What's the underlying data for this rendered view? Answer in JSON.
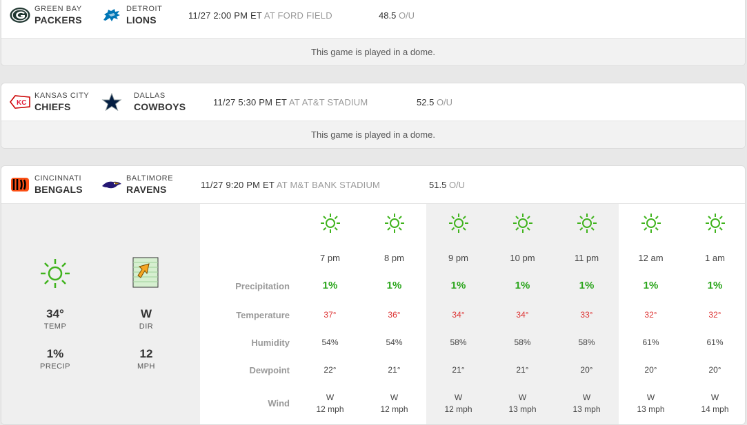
{
  "games": [
    {
      "away": {
        "city": "GREEN BAY",
        "name": "PACKERS"
      },
      "home": {
        "city": "DETROIT",
        "name": "LIONS"
      },
      "time": "11/27 2:00 PM ET",
      "venue": "AT FORD FIELD",
      "total": "48.5",
      "ou_label": "O/U",
      "note": "This game is played in a dome."
    },
    {
      "away": {
        "city": "KANSAS CITY",
        "name": "CHIEFS"
      },
      "home": {
        "city": "DALLAS",
        "name": "COWBOYS"
      },
      "time": "11/27 5:30 PM ET",
      "venue": "AT AT&T STADIUM",
      "total": "52.5",
      "ou_label": "O/U",
      "note": "This game is played in a dome."
    },
    {
      "away": {
        "city": "CINCINNATI",
        "name": "BENGALS"
      },
      "home": {
        "city": "BALTIMORE",
        "name": "RAVENS"
      },
      "time": "11/27 9:20 PM ET",
      "venue": "AT M&T BANK STADIUM",
      "total": "51.5",
      "ou_label": "O/U"
    }
  ],
  "current": {
    "temp": "34°",
    "temp_label": "TEMP",
    "dir": "W",
    "dir_label": "DIR",
    "precip": "1%",
    "precip_label": "PRECIP",
    "speed": "12",
    "speed_label": "MPH"
  },
  "row_labels": {
    "precipitation": "Precipitation",
    "temperature": "Temperature",
    "humidity": "Humidity",
    "dewpoint": "Dewpoint",
    "wind": "Wind"
  },
  "hourly": [
    {
      "hour": "7 pm",
      "precip": "1%",
      "temp": "37°",
      "humidity": "54%",
      "dewpoint": "22°",
      "wind_dir": "W",
      "wind_speed": "12 mph"
    },
    {
      "hour": "8 pm",
      "precip": "1%",
      "temp": "36°",
      "humidity": "54%",
      "dewpoint": "21°",
      "wind_dir": "W",
      "wind_speed": "12 mph"
    },
    {
      "hour": "9 pm",
      "precip": "1%",
      "temp": "34°",
      "humidity": "58%",
      "dewpoint": "21°",
      "wind_dir": "W",
      "wind_speed": "12 mph"
    },
    {
      "hour": "10 pm",
      "precip": "1%",
      "temp": "34°",
      "humidity": "58%",
      "dewpoint": "21°",
      "wind_dir": "W",
      "wind_speed": "13 mph"
    },
    {
      "hour": "11 pm",
      "precip": "1%",
      "temp": "33°",
      "humidity": "58%",
      "dewpoint": "20°",
      "wind_dir": "W",
      "wind_speed": "13 mph"
    },
    {
      "hour": "12 am",
      "precip": "1%",
      "temp": "32°",
      "humidity": "61%",
      "dewpoint": "20°",
      "wind_dir": "W",
      "wind_speed": "13 mph"
    },
    {
      "hour": "1 am",
      "precip": "1%",
      "temp": "32°",
      "humidity": "61%",
      "dewpoint": "20°",
      "wind_dir": "W",
      "wind_speed": "14 mph"
    }
  ],
  "colors": {
    "precip_green": "#2aa51b",
    "temp_red": "#dd3333",
    "sun_green": "#3fb31c",
    "arrow_orange": "#f5a623"
  }
}
